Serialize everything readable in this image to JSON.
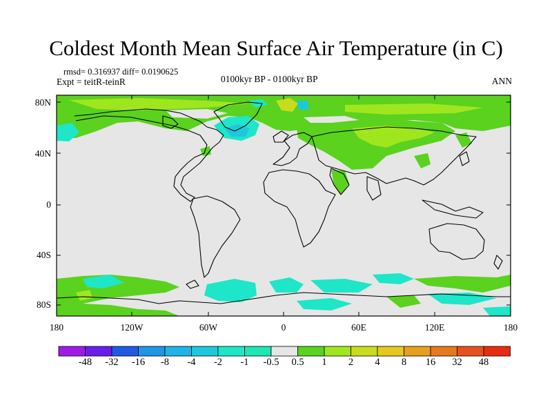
{
  "title": "Coldest Month Mean Surface Air Temperature (in C)",
  "stats": {
    "text": "rmsd= 0.316937 diff= 0.0190625"
  },
  "experiment": {
    "text": "Expt = teitR-teinR"
  },
  "period": {
    "text": "0100kyr BP - 0100kyr BP"
  },
  "season": {
    "text": "ANN"
  },
  "lat_labels": [
    "80N",
    "40N",
    "0",
    "40S",
    "80S"
  ],
  "lon_labels": [
    "180",
    "120W",
    "60W",
    "0",
    "60E",
    "120E",
    "180"
  ],
  "colorbar": {
    "labels": [
      "-48",
      "-32",
      "-16",
      "-8",
      "-4",
      "-2",
      "-1",
      "-0.5",
      "0.5",
      "1",
      "2",
      "4",
      "8",
      "16",
      "32",
      "48"
    ],
    "colors": [
      "#a01ae6",
      "#6a1ee8",
      "#1e5ae6",
      "#1e96e6",
      "#1eb4e6",
      "#1ec8dc",
      "#1ee6c8",
      "#1ee6b4",
      "#e6e6e6",
      "#5ad21e",
      "#a0e61e",
      "#c8dc1e",
      "#e6c81e",
      "#e6a01e",
      "#e6781e",
      "#e6501e",
      "#e62d14"
    ]
  },
  "map_colors": {
    "background": "#e6e6e6",
    "coast": "#000000",
    "positive_small": "#5ad21e",
    "positive_mid": "#a0e61e",
    "positive_high": "#c8dc1e",
    "negative_small": "#1ee6c8",
    "negative_mid": "#1ec8dc"
  }
}
